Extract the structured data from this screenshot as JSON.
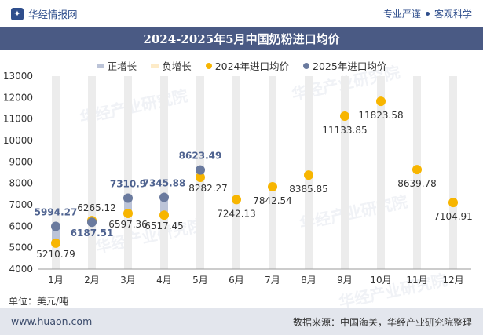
{
  "header": {
    "brand": "华经情报网",
    "tags": [
      "专业严谨",
      "客观科学"
    ]
  },
  "chart_data": {
    "type": "scatter",
    "title": "2024-2025年5月中国奶粉进口均价",
    "unit_label": "单位：美元/吨",
    "categories": [
      "1月",
      "2月",
      "3月",
      "4月",
      "5月",
      "6月",
      "7月",
      "8月",
      "9月",
      "10月",
      "11月",
      "12月"
    ],
    "legend": [
      "正增长",
      "负增长",
      "2024年进口均价",
      "2025年进口均价"
    ],
    "ylim": [
      4000,
      13000
    ],
    "yticks": [
      4000,
      5000,
      6000,
      7000,
      8000,
      9000,
      10000,
      11000,
      12000,
      13000
    ],
    "series": [
      {
        "name": "2024年进口均价",
        "values": [
          5210.79,
          6265.12,
          6597.36,
          6517.45,
          8282.27,
          7242.13,
          7842.54,
          8385.85,
          11133.85,
          11823.58,
          8639.78,
          7104.91
        ],
        "labels": [
          "5210.79",
          "6265.12",
          "6597.36",
          "6517.45",
          "8282.27",
          "7242.13",
          "7842.54",
          "8385.85",
          "11133.85",
          "11823.58",
          "8639.78",
          "7104.91"
        ]
      },
      {
        "name": "2025年进口均价",
        "values": [
          5994.27,
          6187.51,
          7310.9,
          7345.88,
          8623.49
        ],
        "labels": [
          "5994.27",
          "6187.51",
          "7310.9",
          "7345.88",
          "8623.49"
        ]
      }
    ],
    "colors": {
      "positive": "#bcc4d8",
      "negative": "#fdebc8",
      "s2024": "#f7b500",
      "s2025": "#6a7a9e",
      "title_bar": "#4a5a84",
      "label_2025": "#4f6390"
    }
  },
  "footer": {
    "url": "www.huaon.com",
    "source": "数据来源：中国海关，华经产业研究院整理"
  },
  "watermark": "华经产业研究院"
}
